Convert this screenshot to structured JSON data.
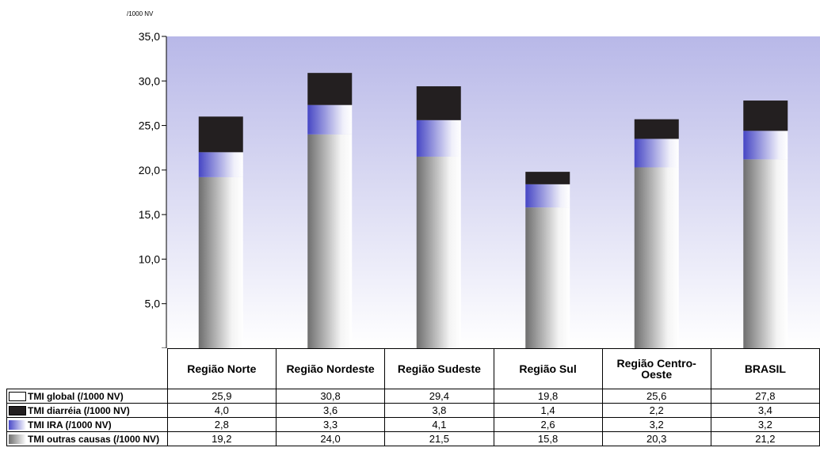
{
  "chart_data": {
    "type": "bar",
    "stacked": true,
    "unit_label": "/1000 NV",
    "categories": [
      "Região Norte",
      "Região Nordeste",
      "Região Sudeste",
      "Região Sul",
      "Região Centro-Oeste",
      "BRASIL"
    ],
    "series": [
      {
        "name": "TMI outras causas (/1000 NV)",
        "values": [
          19.2,
          24.0,
          21.5,
          15.8,
          20.3,
          21.2
        ]
      },
      {
        "name": "TMI IRA (/1000 NV)",
        "values": [
          2.8,
          3.3,
          4.1,
          2.6,
          3.2,
          3.2
        ]
      },
      {
        "name": "TMI diarréia (/1000 NV)",
        "values": [
          4.0,
          3.6,
          3.8,
          1.4,
          2.2,
          3.4
        ]
      }
    ],
    "totals": {
      "name": "TMI global (/1000 NV)",
      "values": [
        25.9,
        30.8,
        29.4,
        19.8,
        25.6,
        27.8
      ]
    },
    "ylim": [
      0,
      35
    ],
    "yticks": [
      "–",
      "5,0",
      "10,0",
      "15,0",
      "20,0",
      "25,0",
      "30,0",
      "35,0"
    ],
    "colors": {
      "diarreia": "#231f20",
      "ira": "#4a4ac8",
      "outras": "#707070",
      "background_top": "#b8b8e8"
    }
  },
  "table": {
    "headers": [
      "Região Norte",
      "Região Nordeste",
      "Região Sudeste",
      "Região Sul",
      "Região Centro-Oeste",
      "BRASIL"
    ],
    "rows": [
      {
        "label": "TMI global (/1000 NV)",
        "swatch": "global",
        "cells": [
          "25,9",
          "30,8",
          "29,4",
          "19,8",
          "25,6",
          "27,8"
        ]
      },
      {
        "label": "TMI diarréia (/1000 NV)",
        "swatch": "diarreia",
        "cells": [
          "4,0",
          "3,6",
          "3,8",
          "1,4",
          "2,2",
          "3,4"
        ]
      },
      {
        "label": "TMI IRA (/1000 NV)",
        "swatch": "ira",
        "cells": [
          "2,8",
          "3,3",
          "4,1",
          "2,6",
          "3,2",
          "3,2"
        ]
      },
      {
        "label": "TMI outras causas (/1000 NV)",
        "swatch": "outras",
        "cells": [
          "19,2",
          "24,0",
          "21,5",
          "15,8",
          "20,3",
          "21,2"
        ]
      }
    ]
  }
}
